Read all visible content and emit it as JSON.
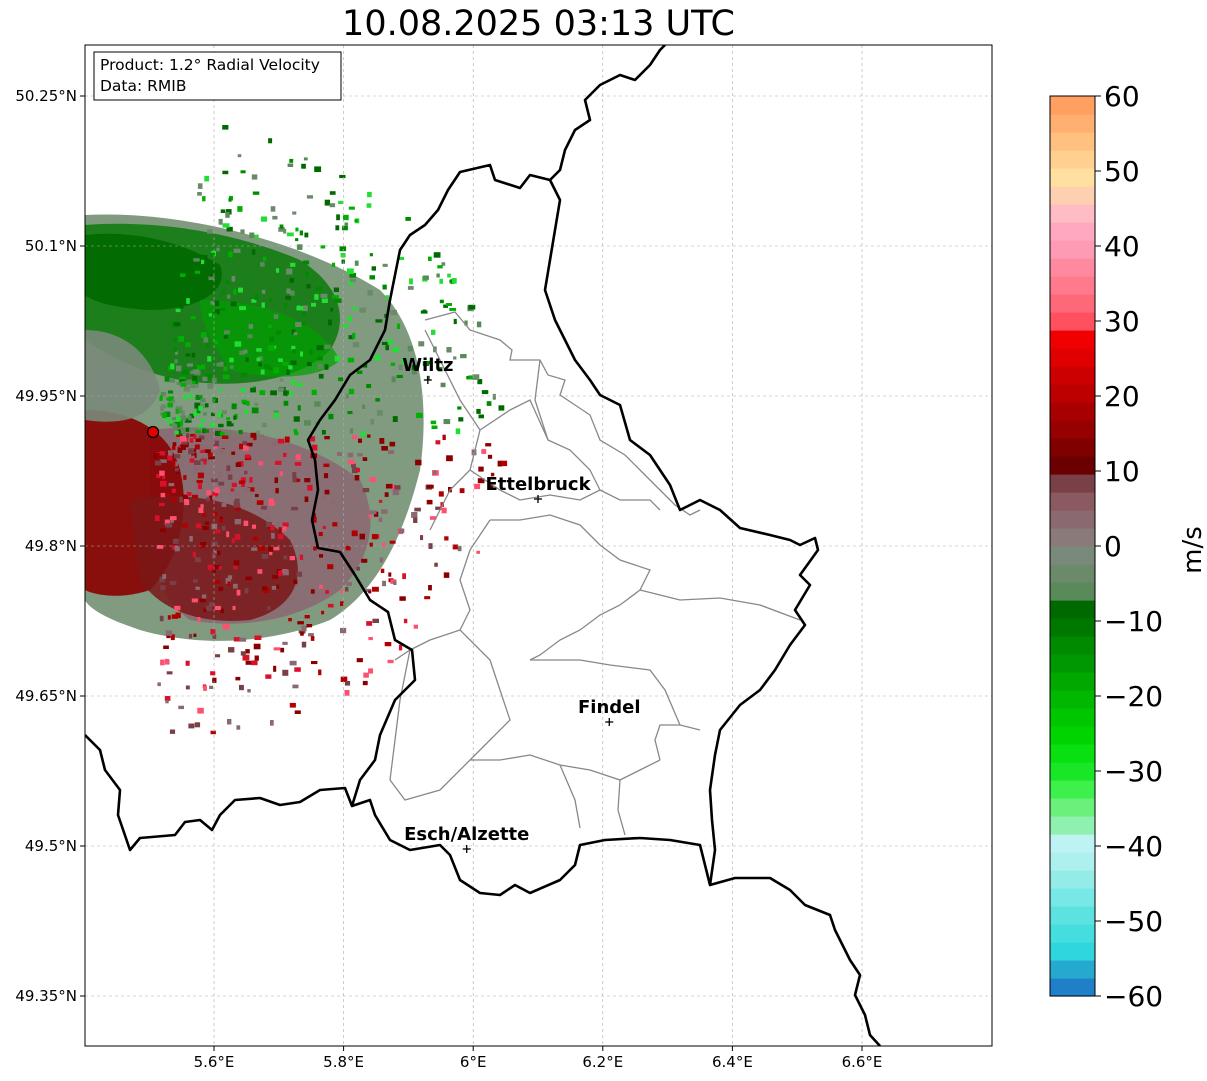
{
  "title": "10.08.2025 03:13 UTC",
  "info_box": {
    "line1": "Product: 1.2° Radial Velocity",
    "line2": "Data: RMIB"
  },
  "map": {
    "lon_range": [
      5.4,
      6.8
    ],
    "lat_range": [
      49.3,
      50.3
    ],
    "x_ticks": [
      {
        "value": 5.6,
        "label": "5.6°E"
      },
      {
        "value": 5.8,
        "label": "5.8°E"
      },
      {
        "value": 6.0,
        "label": "6°E"
      },
      {
        "value": 6.2,
        "label": "6.2°E"
      },
      {
        "value": 6.4,
        "label": "6.4°E"
      },
      {
        "value": 6.6,
        "label": "6.6°E"
      }
    ],
    "y_ticks": [
      {
        "value": 50.25,
        "label": "50.25°N"
      },
      {
        "value": 50.1,
        "label": "50.1°N"
      },
      {
        "value": 49.95,
        "label": "49.95°N"
      },
      {
        "value": 49.8,
        "label": "49.8°N"
      },
      {
        "value": 49.65,
        "label": "49.65°N"
      },
      {
        "value": 49.5,
        "label": "49.5°N"
      },
      {
        "value": 49.35,
        "label": "49.35°N"
      }
    ],
    "radar_site": {
      "lon": 5.506,
      "lat": 49.914
    },
    "cities": [
      {
        "name": "Wiltz",
        "lon": 5.93,
        "lat": 49.966
      },
      {
        "name": "Ettelbruck",
        "lon": 6.1,
        "lat": 49.847
      },
      {
        "name": "Findel",
        "lon": 6.21,
        "lat": 49.624
      },
      {
        "name": "Esch/Alzette",
        "lon": 5.99,
        "lat": 49.497
      }
    ]
  },
  "colorbar": {
    "label": "m/s",
    "min": -60,
    "max": 60,
    "ticks": [
      {
        "value": 60,
        "label": "60"
      },
      {
        "value": 50,
        "label": "50"
      },
      {
        "value": 40,
        "label": "40"
      },
      {
        "value": 30,
        "label": "30"
      },
      {
        "value": 20,
        "label": "20"
      },
      {
        "value": 10,
        "label": "10"
      },
      {
        "value": 0,
        "label": "0"
      },
      {
        "value": -10,
        "label": "−10"
      },
      {
        "value": -20,
        "label": "−20"
      },
      {
        "value": -30,
        "label": "−30"
      },
      {
        "value": -40,
        "label": "−40"
      },
      {
        "value": -50,
        "label": "−50"
      },
      {
        "value": -60,
        "label": "−60"
      }
    ],
    "colors": [
      "#1f7fc8",
      "#25a9cf",
      "#2fd6dc",
      "#45dede",
      "#5ce3e1",
      "#78e8e6",
      "#94ece9",
      "#aef0ee",
      "#bdf3f2",
      "#90f0b0",
      "#6cf07c",
      "#3ef04c",
      "#1ae628",
      "#08e010",
      "#00d400",
      "#00c600",
      "#00b800",
      "#00a800",
      "#009800",
      "#008a00",
      "#007800",
      "#006a00",
      "#5a8a5a",
      "#6a8a6a",
      "#7a8a7a",
      "#8a7a7a",
      "#8a6a70",
      "#8a5a60",
      "#7a4048",
      "#6a0000",
      "#800000",
      "#960000",
      "#a80000",
      "#bc0000",
      "#cc0000",
      "#e00000",
      "#f00000",
      "#ff5060",
      "#ff6878",
      "#ff7a8c",
      "#ff8aa0",
      "#ff9ab4",
      "#ffa8c0",
      "#ffbcc4",
      "#ffd0b0",
      "#ffe0a0",
      "#ffd090",
      "#ffc080",
      "#ffb070",
      "#ffa060"
    ],
    "colors_note": ""
  }
}
